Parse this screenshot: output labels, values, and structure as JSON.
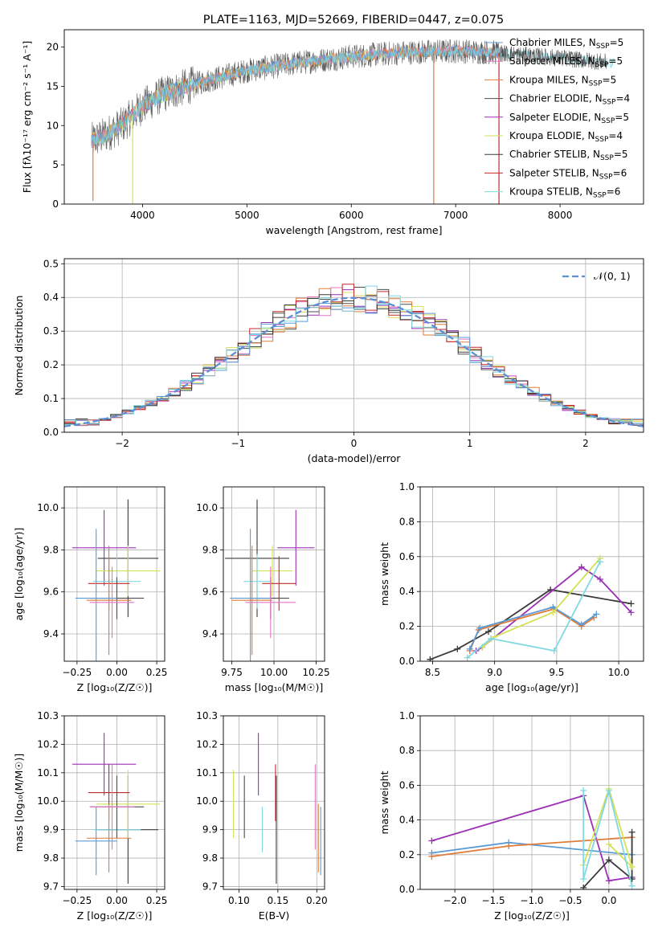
{
  "figure_title": "PLATE=1163, MJD=52669, FIBERID=0447, z=0.075",
  "colors": {
    "chabrier_miles": "#5b9bd5",
    "salpeter_miles": "#e377c2",
    "kroupa_miles": "#e07b39",
    "chabrier_elodie": "#4d4d4d",
    "salpeter_elodie": "#9b30b5",
    "kroupa_elodie": "#d4e157",
    "chabrier_stelib": "#3a3a3a",
    "salpeter_stelib": "#c62828",
    "kroupa_stelib": "#80d8e0",
    "normal_curve": "#5b8fd6",
    "grid": "#b0b0b0"
  },
  "chart_data": [
    {
      "id": "spectrum",
      "type": "line",
      "title": "PLATE=1163, MJD=52669, FIBERID=0447, z=0.075",
      "xlabel": "wavelength [Angstrom, rest frame]",
      "ylabel": "Flux [fλ10⁻¹⁷ erg cm⁻² s⁻¹ A⁻¹]",
      "xlim": [
        3250,
        8800
      ],
      "ylim": [
        0,
        22.2
      ],
      "xticks": [
        4000,
        5000,
        6000,
        7000,
        8000
      ],
      "yticks": [
        0,
        5,
        10,
        15,
        20
      ],
      "grid": false,
      "legend_loc": "upper right",
      "legend": [
        {
          "label": "Chabrier MILES, N",
          "sub": "SSP",
          "tail": "=5",
          "color_key": "chabrier_miles"
        },
        {
          "label": "Salpeter MILES, N",
          "sub": "SSP",
          "tail": "=5",
          "color_key": "salpeter_miles"
        },
        {
          "label": "Kroupa MILES, N",
          "sub": "SSP",
          "tail": "=5",
          "color_key": "kroupa_miles"
        },
        {
          "label": "Chabrier ELODIE, N",
          "sub": "SSP",
          "tail": "=4",
          "color_key": "chabrier_elodie"
        },
        {
          "label": "Salpeter ELODIE, N",
          "sub": "SSP",
          "tail": "=5",
          "color_key": "salpeter_elodie"
        },
        {
          "label": "Kroupa ELODIE, N",
          "sub": "SSP",
          "tail": "=4",
          "color_key": "kroupa_elodie"
        },
        {
          "label": "Chabrier STELIB, N",
          "sub": "SSP",
          "tail": "=5",
          "color_key": "chabrier_stelib"
        },
        {
          "label": "Salpeter STELIB, N",
          "sub": "SSP",
          "tail": "=6",
          "color_key": "salpeter_stelib"
        },
        {
          "label": "Kroupa STELIB, N",
          "sub": "SSP",
          "tail": "=6",
          "color_key": "kroupa_stelib"
        }
      ],
      "continuum": {
        "x": [
          3500,
          3600,
          3800,
          4000,
          4200,
          4500,
          5000,
          5500,
          6000,
          6500,
          7000,
          7400,
          7600,
          8000,
          8500
        ],
        "y": [
          8.0,
          8.5,
          10.0,
          12.5,
          14.0,
          15.3,
          17.0,
          18.0,
          18.8,
          19.3,
          19.5,
          19.3,
          19.0,
          18.6,
          18.0
        ]
      },
      "spikes": [
        {
          "x": 3525,
          "y": 0.4
        },
        {
          "x": 3905,
          "y": 0.0
        },
        {
          "x": 6790,
          "y": 0.0
        },
        {
          "x": 7415,
          "y": 0.0
        }
      ]
    },
    {
      "id": "residual_hist",
      "type": "line",
      "xlabel": "(data-model)/error",
      "ylabel": "Normed distribution",
      "xlim": [
        -2.5,
        2.5
      ],
      "ylim": [
        0,
        0.515
      ],
      "xticks": [
        -2,
        -1,
        0,
        1,
        2
      ],
      "xticklabels": [
        "−2",
        "−1",
        "0",
        "1",
        "2"
      ],
      "yticks": [
        0.0,
        0.1,
        0.2,
        0.3,
        0.4,
        0.5
      ],
      "yticklabels": [
        "0.0",
        "0.1",
        "0.2",
        "0.3",
        "0.4",
        "0.5"
      ],
      "grid": true,
      "legend_loc": "upper right",
      "legend": [
        {
          "label": "𝒩(0, 1)",
          "color_key": "normal_curve"
        }
      ],
      "bin_width": 0.1,
      "bin_start": -2.5,
      "bins": 50
    },
    {
      "id": "z_vs_age",
      "type": "scatter",
      "xlabel": "Z [log₁₀(Z/Z☉)]",
      "ylabel": "age  [log₁₀(age/yr)]",
      "xlim": [
        -0.33,
        0.3
      ],
      "ylim": [
        9.27,
        10.1
      ],
      "xticks": [
        -0.25,
        0.0,
        0.25
      ],
      "xticklabels": [
        "−0.25",
        "0.00",
        "0.25"
      ],
      "yticks": [
        9.4,
        9.6,
        9.8,
        10.0
      ],
      "yticklabels": [
        "9.4",
        "9.6",
        "9.8",
        "10.0"
      ],
      "grid": true
    },
    {
      "id": "mass_vs_age",
      "type": "scatter",
      "xlabel": "mass [log₁₀(M/M☉)]",
      "xlim": [
        9.7,
        10.3
      ],
      "ylim": [
        9.27,
        10.1
      ],
      "xticks": [
        9.75,
        10.0,
        10.25
      ],
      "xticklabels": [
        "9.75",
        "10.00",
        "10.25"
      ],
      "yticks": [
        9.4,
        9.6,
        9.8,
        10.0
      ],
      "yticklabels": [
        "9.4",
        "9.6",
        "9.8",
        "10.0"
      ],
      "grid": true
    },
    {
      "id": "age_weights",
      "type": "line",
      "xlabel": "age  [log₁₀(age/yr)]",
      "ylabel": "mass weight",
      "xlim": [
        8.4,
        10.2
      ],
      "ylim": [
        0,
        1.0
      ],
      "xticks": [
        8.5,
        9.0,
        9.5,
        10.0
      ],
      "xticklabels": [
        "8.5",
        "9.0",
        "9.5",
        "10.0"
      ],
      "yticks": [
        0.0,
        0.2,
        0.4,
        0.6,
        0.8,
        1.0
      ],
      "yticklabels": [
        "0.0",
        "0.2",
        "0.4",
        "0.6",
        "0.8",
        "1.0"
      ],
      "grid": true,
      "series": [
        {
          "color_key": "chabrier_stelib",
          "x": [
            8.48,
            8.7,
            8.95,
            9.45,
            10.1
          ],
          "y": [
            0.01,
            0.07,
            0.17,
            0.41,
            0.33
          ]
        },
        {
          "color_key": "salpeter_elodie",
          "x": [
            8.85,
            8.9,
            9.7,
            9.85,
            10.1
          ],
          "y": [
            0.06,
            0.08,
            0.54,
            0.47,
            0.28
          ]
        },
        {
          "color_key": "kroupa_miles",
          "x": [
            8.8,
            8.87,
            9.48,
            9.7,
            9.8
          ],
          "y": [
            0.06,
            0.18,
            0.3,
            0.2,
            0.25
          ]
        },
        {
          "color_key": "chabrier_miles",
          "x": [
            8.8,
            8.88,
            9.47,
            9.7,
            9.82
          ],
          "y": [
            0.07,
            0.19,
            0.31,
            0.21,
            0.27
          ]
        },
        {
          "color_key": "kroupa_elodie",
          "x": [
            8.9,
            9.0,
            9.47,
            9.85
          ],
          "y": [
            0.08,
            0.14,
            0.28,
            0.59
          ]
        },
        {
          "color_key": "kroupa_stelib",
          "x": [
            8.78,
            8.97,
            9.48,
            9.85
          ],
          "y": [
            0.02,
            0.13,
            0.06,
            0.57
          ]
        }
      ]
    },
    {
      "id": "z_vs_mass",
      "type": "scatter",
      "xlabel": "Z [log₁₀(Z/Z☉)]",
      "ylabel": "mass [log₁₀(M/M☉)]",
      "xlim": [
        -0.33,
        0.3
      ],
      "ylim": [
        9.69,
        10.3
      ],
      "xticks": [
        -0.25,
        0.0,
        0.25
      ],
      "xticklabels": [
        "−0.25",
        "0.00",
        "0.25"
      ],
      "yticks": [
        9.7,
        9.8,
        9.9,
        10.0,
        10.1,
        10.2,
        10.3
      ],
      "yticklabels": [
        "9.7",
        "9.8",
        "9.9",
        "10.0",
        "10.1",
        "10.2",
        "10.3"
      ],
      "grid": true
    },
    {
      "id": "ebv_vs_mass",
      "type": "scatter",
      "xlabel": "E(B-V)",
      "xlim": [
        0.08,
        0.21
      ],
      "ylim": [
        9.69,
        10.3
      ],
      "xticks": [
        0.1,
        0.15,
        0.2
      ],
      "xticklabels": [
        "0.10",
        "0.15",
        "0.20"
      ],
      "yticks": [
        9.7,
        9.8,
        9.9,
        10.0,
        10.1,
        10.2,
        10.3
      ],
      "yticklabels": [
        "9.7",
        "9.8",
        "9.9",
        "10.0",
        "10.1",
        "10.2",
        "10.3"
      ],
      "grid": true
    },
    {
      "id": "z_weights",
      "type": "line",
      "xlabel": "Z [log₁₀(Z/Z☉)]",
      "ylabel": "mass weight",
      "xlim": [
        -2.45,
        0.45
      ],
      "ylim": [
        0,
        1.0
      ],
      "xticks": [
        -2.0,
        -1.5,
        -1.0,
        -0.5,
        0.0
      ],
      "xticklabels": [
        "−2.0",
        "−1.5",
        "−1.0",
        "−0.5",
        "0.0"
      ],
      "yticks": [
        0.0,
        0.2,
        0.4,
        0.6,
        0.8,
        1.0
      ],
      "yticklabels": [
        "0.0",
        "0.2",
        "0.4",
        "0.6",
        "0.8",
        "1.0"
      ],
      "grid": true,
      "series": [
        {
          "color_key": "salpeter_elodie",
          "x": [
            -2.3,
            -0.33,
            0.0,
            0.3
          ],
          "y": [
            0.28,
            0.54,
            0.05,
            0.07
          ]
        },
        {
          "color_key": "chabrier_miles",
          "x": [
            -2.3,
            -1.3,
            0.3
          ],
          "y": [
            0.21,
            0.27,
            0.2
          ]
        },
        {
          "color_key": "kroupa_miles",
          "x": [
            -2.3,
            -1.3,
            0.3
          ],
          "y": [
            0.19,
            0.25,
            0.3
          ]
        },
        {
          "color_key": "chabrier_stelib",
          "x": [
            -0.33,
            0.0,
            0.3,
            0.3
          ],
          "y": [
            0.01,
            0.17,
            0.06,
            0.33
          ]
        },
        {
          "color_key": "kroupa_elodie",
          "x": [
            -0.33,
            0.0,
            0.3,
            0.0
          ],
          "y": [
            0.14,
            0.58,
            0.13,
            0.26
          ]
        },
        {
          "color_key": "kroupa_stelib",
          "x": [
            -0.33,
            -0.33,
            0.0,
            0.3
          ],
          "y": [
            0.57,
            0.06,
            0.57,
            0.02
          ]
        }
      ]
    }
  ],
  "errorbars": {
    "age_mass_z": [
      {
        "color_key": "salpeter_elodie",
        "z": -0.08,
        "z_err": 0.2,
        "age": 9.81,
        "age_err": 0.18,
        "mass": 10.13,
        "mass_err": 0.11,
        "ebv": 0.125
      },
      {
        "color_key": "chabrier_stelib",
        "z": 0.07,
        "z_err": 0.19,
        "age": 9.76,
        "age_err": 0.28,
        "mass": 9.9,
        "mass_err": 0.19,
        "ebv": 0.148
      },
      {
        "color_key": "kroupa_elodie",
        "z": 0.07,
        "z_err": 0.2,
        "age": 9.7,
        "age_err": 0.12,
        "mass": 9.99,
        "mass_err": 0.12,
        "ebv": 0.093
      },
      {
        "color_key": "kroupa_stelib",
        "z": 0.0,
        "z_err": 0.15,
        "age": 9.65,
        "age_err": 0.13,
        "mass": 9.9,
        "mass_err": 0.08,
        "ebv": 0.13
      },
      {
        "color_key": "salpeter_stelib",
        "z": -0.05,
        "z_err": 0.13,
        "age": 9.64,
        "age_err": 0.13,
        "mass": 10.03,
        "mass_err": 0.1,
        "ebv": 0.147
      },
      {
        "color_key": "chabrier_elodie",
        "z": 0.0,
        "z_err": 0.17,
        "age": 9.57,
        "age_err": 0.1,
        "mass": 9.98,
        "mass_err": 0.11,
        "ebv": 0.107
      },
      {
        "color_key": "chabrier_miles",
        "z": -0.13,
        "z_err": 0.13,
        "age": 9.57,
        "age_err": 0.33,
        "mass": 9.86,
        "mass_err": 0.12,
        "ebv": 0.205
      },
      {
        "color_key": "kroupa_miles",
        "z": -0.05,
        "z_err": 0.14,
        "age": 9.56,
        "age_err": 0.26,
        "mass": 9.87,
        "mass_err": 0.12,
        "ebv": 0.202
      },
      {
        "color_key": "salpeter_miles",
        "z": -0.03,
        "z_err": 0.14,
        "age": 9.55,
        "age_err": 0.17,
        "mass": 9.98,
        "mass_err": 0.15,
        "ebv": 0.198
      }
    ]
  }
}
